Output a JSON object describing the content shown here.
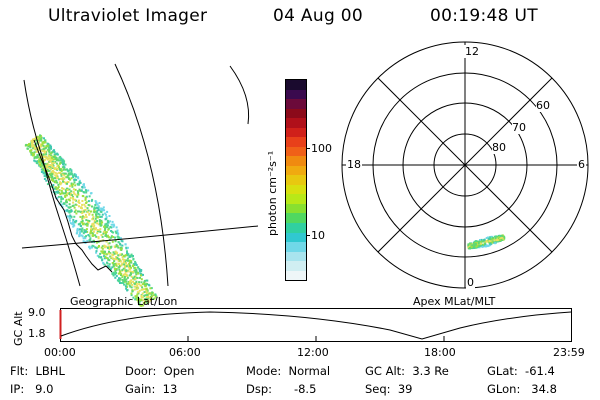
{
  "header": {
    "instrument": "Ultraviolet Imager",
    "date": "04 Aug 00",
    "time": "00:19:48 UT"
  },
  "left_panel": {
    "label": "Geographic Lat/Lon"
  },
  "colorbar": {
    "unit_label": "photon cm⁻²s⁻¹",
    "ticks": [
      "100",
      "10"
    ],
    "colors": [
      "#1a0a2e",
      "#3a0a4e",
      "#6b0a3a",
      "#8b0a1a",
      "#b0101a",
      "#d0201a",
      "#e8401a",
      "#f06018",
      "#f08a10",
      "#f0aa10",
      "#e8c810",
      "#d8e010",
      "#b8e818",
      "#88e030",
      "#50d860",
      "#30d0a0",
      "#30c8d0",
      "#70d8e8",
      "#a8e4ee",
      "#d0eef2",
      "#eef6f8"
    ]
  },
  "polar": {
    "label": "Apex MLat/MLT",
    "lat_labels": [
      "60",
      "70",
      "80"
    ],
    "mlt_labels": {
      "top": "12",
      "left": "18",
      "right": "6",
      "bottom": "0"
    }
  },
  "timeline": {
    "axis_label": "GC Alt",
    "y_ticks": [
      "9.0",
      "1.8"
    ],
    "x_ticks": [
      "00:00",
      "06:00",
      "12:00",
      "18:00",
      "23:59"
    ]
  },
  "info": {
    "row1": {
      "flt": "Flt:  LBHL",
      "door": "Door:  Open",
      "mode": "Mode:  Normal",
      "gc_alt": "GC Alt:  3.3 Re",
      "glat": "GLat:  -61.4"
    },
    "row2": {
      "ip": "IP:   9.0",
      "gain": "Gain:  13",
      "dsp": "Dsp:      -8.5",
      "seq": "Seq:  39",
      "glon": "GLon:   34.8"
    }
  }
}
